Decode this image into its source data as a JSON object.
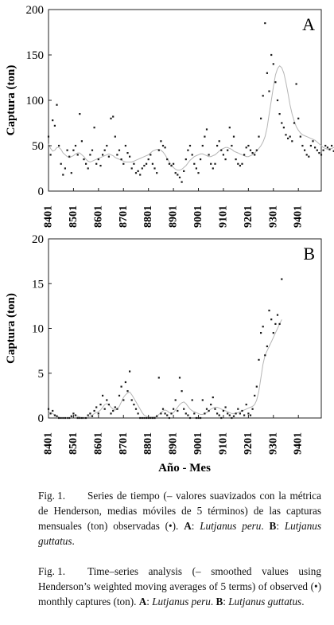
{
  "chart_data": [
    {
      "type": "line",
      "panel_letter": "A",
      "ylabel": "Captura (ton)",
      "ylim": [
        0,
        200
      ],
      "yticks": [
        0,
        50,
        100,
        150,
        200
      ],
      "xticks": [
        "8401",
        "8501",
        "8601",
        "8701",
        "8801",
        "8901",
        "9001",
        "9101",
        "9201",
        "9301",
        "9401"
      ],
      "x_start": "8401",
      "x_end": "9412",
      "grid": false,
      "series": [
        {
          "style": "line",
          "values": [
            52,
            47,
            44,
            45,
            48,
            48,
            46,
            42,
            40,
            38,
            37,
            38,
            39,
            41,
            42,
            42,
            40,
            38,
            35,
            33,
            32,
            33,
            34,
            35,
            36,
            37,
            38,
            39,
            40,
            41,
            40,
            39,
            37,
            36,
            35,
            34,
            33,
            32,
            32,
            32,
            32,
            33,
            34,
            35,
            36,
            37,
            38,
            39,
            40,
            42,
            44,
            45,
            46,
            46,
            45,
            43,
            40,
            36,
            32,
            29,
            26,
            24,
            23,
            23,
            24,
            26,
            28,
            31,
            34,
            36,
            38,
            39,
            40,
            41,
            41,
            40,
            39,
            38,
            38,
            39,
            40,
            42,
            44,
            46,
            47,
            48,
            48,
            47,
            46,
            44,
            43,
            42,
            41,
            40,
            39,
            38,
            38,
            39,
            40,
            42,
            44,
            47,
            50,
            54,
            60,
            70,
            85,
            100,
            115,
            128,
            135,
            138,
            136,
            130,
            120,
            108,
            95,
            85,
            77,
            71,
            67,
            64,
            62,
            61,
            60,
            59,
            58,
            57,
            56,
            54,
            52,
            50,
            48,
            47,
            46,
            46,
            47,
            48,
            49,
            50,
            50,
            50,
            49,
            48,
            47,
            46,
            46,
            47,
            48,
            48,
            48,
            48,
            48
          ]
        },
        {
          "style": "points",
          "values": [
            60,
            40,
            78,
            72,
            95,
            50,
            30,
            18,
            25,
            45,
            38,
            20,
            45,
            50,
            40,
            85,
            55,
            35,
            30,
            25,
            40,
            45,
            70,
            30,
            35,
            28,
            40,
            45,
            50,
            38,
            80,
            82,
            60,
            40,
            45,
            35,
            30,
            50,
            42,
            38,
            25,
            30,
            20,
            22,
            18,
            25,
            28,
            30,
            35,
            40,
            30,
            25,
            20,
            45,
            55,
            50,
            48,
            35,
            30,
            28,
            30,
            20,
            18,
            15,
            10,
            22,
            35,
            45,
            50,
            40,
            30,
            25,
            20,
            35,
            50,
            60,
            68,
            40,
            30,
            25,
            30,
            50,
            55,
            45,
            40,
            35,
            45,
            70,
            50,
            60,
            35,
            30,
            28,
            30,
            40,
            48,
            50,
            45,
            42,
            40,
            45,
            60,
            80,
            105,
            185,
            130,
            110,
            150,
            140,
            120,
            100,
            85,
            75,
            70,
            62,
            58,
            60,
            55,
            75,
            118,
            80,
            60,
            50,
            45,
            40,
            38,
            50,
            55,
            48,
            45,
            42,
            40,
            45,
            50,
            48,
            46,
            50,
            44,
            42,
            38,
            45,
            50,
            52,
            48,
            46,
            50,
            55,
            45,
            42,
            50,
            48,
            46,
            52
          ]
        }
      ]
    },
    {
      "type": "line",
      "panel_letter": "B",
      "ylabel": "Captura (ton)",
      "ylim": [
        0,
        20
      ],
      "yticks": [
        0,
        5,
        10,
        15,
        20
      ],
      "xticks": [
        "8401",
        "8501",
        "8601",
        "8701",
        "8801",
        "8901",
        "9001",
        "9101",
        "9201",
        "9301",
        "9401"
      ],
      "x_start": "8401",
      "x_end": "9412",
      "grid": false,
      "series": [
        {
          "style": "line",
          "values": [
            0.5,
            0.6,
            0.5,
            0.3,
            0.2,
            0.1,
            0.0,
            0.0,
            0.0,
            0.0,
            0.0,
            0.1,
            0.2,
            0.3,
            0.2,
            0.1,
            0.0,
            0.0,
            0.0,
            0.1,
            0.2,
            0.3,
            0.5,
            0.6,
            0.7,
            0.9,
            1.2,
            1.5,
            1.6,
            1.5,
            1.2,
            1.0,
            0.9,
            1.0,
            1.3,
            1.8,
            2.3,
            2.6,
            2.8,
            2.9,
            2.6,
            2.2,
            1.8,
            1.4,
            1.0,
            0.6,
            0.3,
            0.2,
            0.1,
            0.1,
            0.1,
            0.1,
            0.2,
            0.4,
            0.6,
            0.8,
            0.9,
            0.8,
            0.6,
            0.5,
            0.6,
            0.9,
            1.2,
            1.5,
            1.7,
            1.8,
            1.6,
            1.3,
            1.0,
            0.8,
            0.7,
            0.6,
            0.5,
            0.4,
            0.4,
            0.5,
            0.6,
            0.8,
            1.0,
            1.1,
            1.2,
            1.2,
            1.1,
            1.0,
            0.9,
            0.8,
            0.7,
            0.6,
            0.5,
            0.5,
            0.5,
            0.6,
            0.7,
            0.8,
            0.9,
            1.0,
            1.1,
            1.2,
            1.3,
            1.5,
            2.0,
            3.0,
            4.5,
            6.0,
            7.0,
            7.5,
            8.0,
            8.5,
            9.0,
            9.5,
            10.0,
            10.5,
            11.0
          ]
        },
        {
          "style": "points",
          "values": [
            1.0,
            0.5,
            0.8,
            0.3,
            0.2,
            0.0,
            0.0,
            0.0,
            0.0,
            0.0,
            0.0,
            0.2,
            0.5,
            0.3,
            0.0,
            0.0,
            0.0,
            0.0,
            0.0,
            0.3,
            0.5,
            0.2,
            0.8,
            1.2,
            0.5,
            1.5,
            2.5,
            1.0,
            2.0,
            1.5,
            0.5,
            0.8,
            1.2,
            1.0,
            2.5,
            3.5,
            2.0,
            4.0,
            3.0,
            5.2,
            2.0,
            1.5,
            1.0,
            0.5,
            0.0,
            0.0,
            0.0,
            0.0,
            0.0,
            0.0,
            0.0,
            0.0,
            0.2,
            4.5,
            0.5,
            1.0,
            0.5,
            0.3,
            0.0,
            0.5,
            1.0,
            2.0,
            0.8,
            4.5,
            3.0,
            1.0,
            0.5,
            0.3,
            0.0,
            2.0,
            0.5,
            0.0,
            0.0,
            0.0,
            2.0,
            0.5,
            1.0,
            0.8,
            1.5,
            2.3,
            1.0,
            0.5,
            0.3,
            0.0,
            0.8,
            1.2,
            0.5,
            0.3,
            0.0,
            0.2,
            0.5,
            1.0,
            0.5,
            0.8,
            0.3,
            1.5,
            0.5,
            0.3,
            1.0,
            2.5,
            3.5,
            6.5,
            9.5,
            10.2,
            7.0,
            8.0,
            12.0,
            11.0,
            9.5,
            10.5,
            11.5,
            10.5,
            15.5
          ]
        }
      ]
    }
  ],
  "shared_xlabel": "Año - Mes",
  "captions": {
    "es": {
      "label": "Fig. 1.",
      "text": "Series de tiempo (– valores suavizados con la métrica de Henderson, medias móviles de 5 términos) de las capturas mensuales (ton) observadas (•). ",
      "a_key": "A",
      "a_species": "Lutjanus peru",
      "b_key": "B",
      "b_species": "Lutjanus guttatus"
    },
    "en": {
      "label": "Fig. 1.",
      "text": "Time–series analysis (– smoothed values using Henderson’s weighted moving averages of 5 terms) of observed (•) monthly captures (ton). ",
      "a_key": "A",
      "a_species": "Lutjanus peru",
      "b_key": "B",
      "b_species": "Lutjanus guttatus"
    }
  }
}
